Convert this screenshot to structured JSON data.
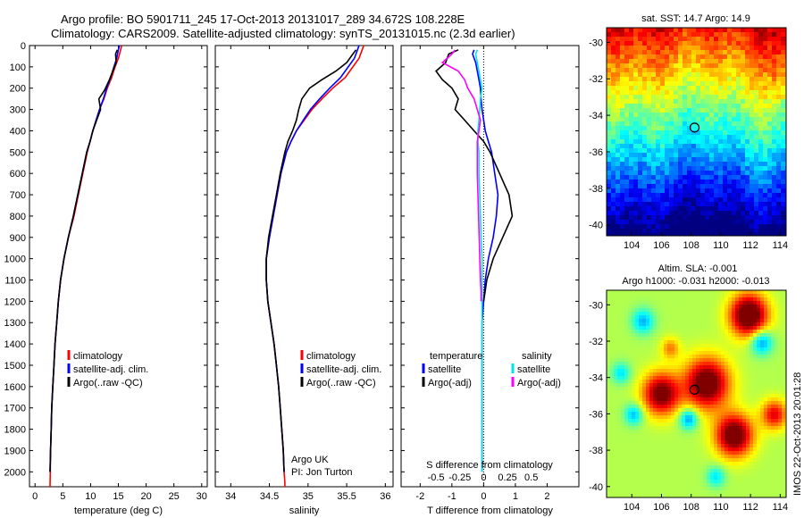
{
  "header": {
    "line1": "Argo profile: BO 5901711_245 17-Oct-2013 20131017_289 34.672S 108.228E",
    "line2": "Climatology: CARS2009. Satellite-adjusted climatology: synTS_20131015.nc (2.3d earlier)"
  },
  "side_text": "IMOS 22-Oct-2013 20:01:28",
  "colors": {
    "climatology": "#ff0000",
    "satellite": "#0000ff",
    "argo": "#000000",
    "sal_satellite": "#00e5e5",
    "sal_argo": "#ff00ff"
  },
  "depth_axis": {
    "ticks": [
      0,
      100,
      200,
      300,
      400,
      500,
      600,
      700,
      800,
      900,
      1000,
      1100,
      1200,
      1300,
      1400,
      1500,
      1600,
      1700,
      1800,
      1900,
      2000
    ],
    "range": [
      0,
      2070
    ]
  },
  "chart_data": [
    {
      "id": "temperature",
      "type": "line",
      "xlabel": "temperature (deg C)",
      "xlim": [
        -1,
        31
      ],
      "xticks": [
        0,
        5,
        10,
        15,
        20,
        25,
        30
      ],
      "legend": [
        "climatology",
        "satellite-adj. clim.",
        "Argo(..raw -QC)"
      ],
      "series": [
        {
          "name": "climatology",
          "color": "climatology",
          "x": [
            15.6,
            15.4,
            15.0,
            14.4,
            13.8,
            13.0,
            12.4,
            11.6,
            11.0,
            10.4,
            9.9,
            9.4,
            8.6,
            7.8,
            7.0,
            6.0,
            5.2,
            4.6,
            4.2,
            3.9,
            3.6,
            3.4,
            3.2,
            3.0,
            2.9,
            2.8,
            2.75,
            2.7
          ],
          "y": [
            0,
            20,
            60,
            100,
            150,
            200,
            250,
            300,
            350,
            400,
            450,
            500,
            600,
            700,
            800,
            900,
            1000,
            1100,
            1200,
            1300,
            1400,
            1500,
            1600,
            1700,
            1800,
            1900,
            2000,
            2070
          ]
        },
        {
          "name": "satellite-adj. clim.",
          "color": "satellite",
          "x": [
            15.2,
            15.0,
            14.7,
            14.2,
            13.6,
            12.9,
            12.3,
            11.6,
            11.0,
            10.4,
            9.9,
            9.3,
            8.5,
            7.7,
            6.9,
            6.0,
            5.2,
            4.6,
            4.2,
            3.9,
            3.6,
            3.4,
            3.2,
            3.0,
            2.9,
            2.8,
            2.7
          ],
          "y": [
            0,
            20,
            60,
            100,
            150,
            200,
            250,
            300,
            350,
            400,
            450,
            500,
            600,
            700,
            800,
            900,
            1000,
            1100,
            1200,
            1300,
            1400,
            1500,
            1600,
            1700,
            1800,
            1900,
            2000
          ]
        },
        {
          "name": "Argo(..raw -QC)",
          "color": "argo",
          "x": [
            14.8,
            14.5,
            14.6,
            14.0,
            13.4,
            12.5,
            11.5,
            11.8,
            11.1,
            10.4,
            9.9,
            9.3,
            8.5,
            7.7,
            6.9,
            6.0,
            5.2,
            4.6,
            4.2,
            3.9,
            3.6,
            3.4,
            3.2,
            3.0,
            2.9,
            2.8,
            2.7
          ],
          "y": [
            20,
            40,
            80,
            120,
            160,
            210,
            250,
            300,
            350,
            400,
            450,
            500,
            600,
            700,
            800,
            900,
            1000,
            1100,
            1200,
            1300,
            1400,
            1500,
            1600,
            1700,
            1800,
            1900,
            2000
          ]
        }
      ]
    },
    {
      "id": "salinity",
      "type": "line",
      "xlabel": "salinity",
      "xlim": [
        33.8,
        36.1
      ],
      "xticks": [
        34,
        34.5,
        35,
        35.5,
        36
      ],
      "legend": [
        "climatology",
        "satellite-adj. clim.",
        "Argo(..raw -QC)"
      ],
      "annotations": [
        "Argo UK",
        "PI: Jon Turton"
      ],
      "series": [
        {
          "name": "climatology",
          "color": "climatology",
          "x": [
            35.72,
            35.7,
            35.66,
            35.58,
            35.48,
            35.32,
            35.18,
            35.05,
            34.95,
            34.85,
            34.78,
            34.72,
            34.65,
            34.6,
            34.55,
            34.5,
            34.46,
            34.46,
            34.48,
            34.52,
            34.56,
            34.59,
            34.62,
            34.64,
            34.66,
            34.68,
            34.69,
            34.7,
            34.7
          ],
          "y": [
            0,
            20,
            60,
            100,
            150,
            200,
            250,
            300,
            350,
            400,
            450,
            500,
            600,
            700,
            800,
            900,
            1000,
            1100,
            1200,
            1300,
            1400,
            1500,
            1600,
            1700,
            1800,
            1900,
            2000,
            2050,
            2070
          ]
        },
        {
          "name": "satellite-adj. clim.",
          "color": "satellite",
          "x": [
            35.66,
            35.64,
            35.6,
            35.52,
            35.42,
            35.28,
            35.15,
            35.03,
            34.94,
            34.85,
            34.78,
            34.72,
            34.65,
            34.6,
            34.55,
            34.5,
            34.46,
            34.46,
            34.48,
            34.52,
            34.56,
            34.59,
            34.62,
            34.64,
            34.66,
            34.68,
            34.69
          ],
          "y": [
            0,
            20,
            60,
            100,
            150,
            200,
            250,
            300,
            350,
            400,
            450,
            500,
            600,
            700,
            800,
            900,
            1000,
            1100,
            1200,
            1300,
            1400,
            1500,
            1600,
            1700,
            1800,
            1900,
            2000
          ]
        },
        {
          "name": "Argo(..raw -QC)",
          "color": "argo",
          "x": [
            35.62,
            35.58,
            35.5,
            35.36,
            35.18,
            35.02,
            34.92,
            34.88,
            34.85,
            34.8,
            34.74,
            34.7,
            34.64,
            34.59,
            34.54,
            34.49,
            34.46,
            34.46,
            34.48,
            34.52,
            34.56,
            34.59,
            34.62,
            34.64,
            34.66,
            34.68,
            34.69
          ],
          "y": [
            20,
            40,
            80,
            120,
            160,
            200,
            250,
            300,
            350,
            400,
            450,
            500,
            600,
            700,
            800,
            900,
            1000,
            1100,
            1200,
            1300,
            1400,
            1500,
            1600,
            1700,
            1800,
            1900,
            2000
          ]
        }
      ]
    },
    {
      "id": "difference",
      "type": "line",
      "xlabel": "T difference from climatology",
      "xlabel_top": "S difference from climatology",
      "xlim": [
        -2.6,
        3.0
      ],
      "xticks": [
        -2,
        -1,
        0,
        1,
        2
      ],
      "xticks_top_positions": [
        -1.5,
        -0.75,
        0,
        0.75,
        1.5
      ],
      "xticks_top_labels": [
        "-0.5",
        "-0.25",
        "0",
        "0.25",
        "0.5"
      ],
      "legend_temperature": {
        "title": "temperature",
        "items": [
          "satellite",
          "Argo(-adj)"
        ]
      },
      "legend_salinity": {
        "title": "salinity",
        "items": [
          "satellite",
          "Argo(-adj)"
        ]
      },
      "series": [
        {
          "name": "temperature satellite",
          "color": "satellite",
          "x": [
            -0.3,
            -0.35,
            -0.25,
            -0.2,
            -0.15,
            -0.1,
            -0.08,
            -0.05,
            0.0,
            0.05,
            0.15,
            0.25,
            0.35,
            0.45,
            0.4,
            0.3,
            0.15,
            0.05,
            0.0,
            -0.05,
            -0.05,
            -0.05,
            -0.05,
            -0.05,
            -0.05,
            -0.05,
            -0.05
          ],
          "y": [
            20,
            40,
            80,
            120,
            160,
            200,
            250,
            300,
            350,
            400,
            450,
            500,
            600,
            700,
            800,
            900,
            1000,
            1100,
            1200,
            1300,
            1400,
            1500,
            1600,
            1700,
            1800,
            1900,
            2000
          ]
        },
        {
          "name": "temperature Argo(-adj)",
          "color": "argo",
          "x": [
            -0.8,
            -1.1,
            -1.2,
            -1.5,
            -1.3,
            -1.0,
            -0.8,
            -0.9,
            -0.6,
            -0.3,
            0.0,
            0.2,
            0.5,
            0.8,
            0.9,
            0.6,
            0.3,
            0.1,
            0.05,
            0.0
          ],
          "y": [
            20,
            40,
            80,
            120,
            160,
            200,
            250,
            300,
            350,
            400,
            450,
            500,
            600,
            700,
            800,
            900,
            1000,
            1100,
            1150,
            1200
          ]
        },
        {
          "name": "salinity satellite",
          "color": "sal_satellite",
          "x": [
            -0.2,
            -0.25,
            -0.2,
            -0.15,
            -0.1,
            -0.05,
            -0.1,
            -0.12,
            -0.15,
            -0.18,
            -0.18,
            -0.15,
            -0.15,
            -0.12,
            -0.1,
            -0.08,
            -0.05,
            -0.05,
            -0.05,
            -0.05,
            -0.05,
            -0.05,
            -0.05,
            -0.05,
            -0.05,
            -0.05,
            -0.05
          ],
          "y": [
            20,
            40,
            80,
            120,
            160,
            200,
            250,
            300,
            350,
            400,
            450,
            500,
            600,
            700,
            800,
            900,
            1000,
            1100,
            1200,
            1300,
            1400,
            1500,
            1600,
            1700,
            1800,
            1900,
            2000
          ]
        },
        {
          "name": "salinity Argo(-adj)",
          "color": "sal_argo",
          "x": [
            -0.9,
            -1.0,
            -1.3,
            -0.8,
            -0.6,
            -0.5,
            -0.3,
            -0.2,
            -0.1,
            -0.15,
            -0.2,
            -0.2,
            -0.2,
            -0.18,
            -0.16,
            -0.14,
            -0.12,
            -0.1,
            -0.08,
            -0.08
          ],
          "y": [
            20,
            40,
            80,
            120,
            160,
            200,
            250,
            300,
            350,
            400,
            450,
            500,
            600,
            700,
            800,
            900,
            1000,
            1100,
            1150,
            1200
          ]
        }
      ]
    },
    {
      "id": "sst_map",
      "type": "heatmap",
      "title": "sat. SST: 14.7  Argo: 14.9",
      "xlim": [
        102.3,
        114.4
      ],
      "ylim": [
        -40.6,
        -29.2
      ],
      "xticks": [
        104,
        106,
        108,
        110,
        112,
        114
      ],
      "yticks": [
        -30,
        -32,
        -34,
        -36,
        -38,
        -40
      ],
      "marker": {
        "lon": 108.228,
        "lat": -34.672
      }
    },
    {
      "id": "sla_map",
      "type": "heatmap",
      "title": "Altim. SLA: -0.001",
      "subtitle": "Argo h1000: -0.031  h2000: -0.013",
      "xlim": [
        102.3,
        114.4
      ],
      "ylim": [
        -40.6,
        -29.2
      ],
      "xticks": [
        104,
        106,
        108,
        110,
        112,
        114
      ],
      "yticks": [
        -30,
        -32,
        -34,
        -36,
        -38,
        -40
      ],
      "marker": {
        "lon": 108.228,
        "lat": -34.672
      }
    }
  ]
}
